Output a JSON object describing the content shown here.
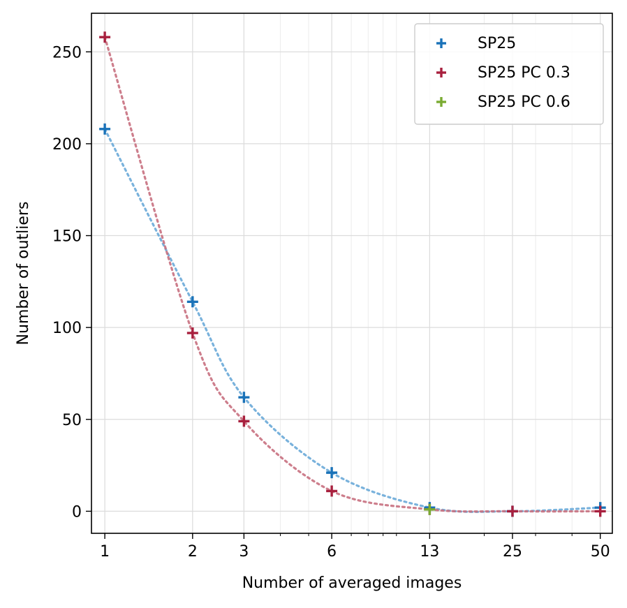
{
  "chart_data": {
    "type": "scatter",
    "title": "",
    "xlabel": "Number of averaged images",
    "ylabel": "Number of outliers",
    "xscale": "log",
    "xlim": [
      0.9,
      55
    ],
    "ylim": [
      -12,
      271
    ],
    "xticks": [
      1,
      2,
      3,
      6,
      13,
      25,
      50
    ],
    "xtick_labels": [
      "1",
      "2",
      "3",
      "6",
      "13",
      "25",
      "50"
    ],
    "yticks": [
      0,
      50,
      100,
      150,
      200,
      250
    ],
    "ytick_labels": [
      "0",
      "50",
      "100",
      "150",
      "200",
      "250"
    ],
    "grid": true,
    "legend_position": "top-right",
    "series": [
      {
        "name": "SP25",
        "color": "#1a72b8",
        "line_color": "#6aaad8",
        "marker": "plus",
        "connected": true,
        "points": [
          [
            1,
            208
          ],
          [
            2,
            114
          ],
          [
            3,
            62
          ],
          [
            6,
            21
          ],
          [
            13,
            2
          ],
          [
            25,
            0
          ],
          [
            50,
            2
          ]
        ]
      },
      {
        "name": "SP25 PC 0.3",
        "color": "#a8203e",
        "line_color": "#c8707f",
        "marker": "plus",
        "connected": true,
        "points": [
          [
            1,
            258
          ],
          [
            2,
            97
          ],
          [
            3,
            49
          ],
          [
            6,
            11
          ],
          [
            13,
            1
          ],
          [
            25,
            0
          ],
          [
            50,
            0
          ]
        ]
      },
      {
        "name": "SP25 PC 0.6",
        "color": "#7aab32",
        "line_color": "#7aab32",
        "marker": "plus",
        "connected": false,
        "points": [
          [
            13,
            1
          ]
        ]
      }
    ]
  }
}
